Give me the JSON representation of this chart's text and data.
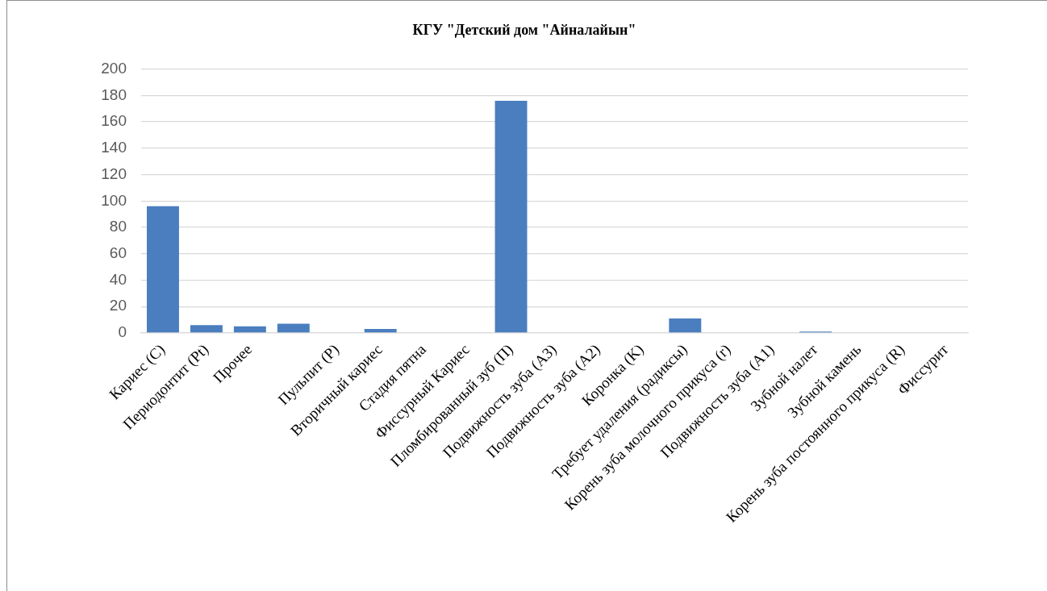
{
  "chart_data": {
    "type": "bar",
    "title": "КГУ \"Детский дом \"Айналайын\"",
    "categories": [
      "Кариес (C)",
      "Периодонтит (Pt)",
      "Прочее",
      null,
      "Пульпит (P)",
      "Вторичный кариес",
      "Стадия пятна",
      "Фиссурный Кариес",
      "Пломбированный зуб (П)",
      "Подвижность зуба (A3)",
      "Подвижность зуба (A2)",
      "Коронка (K)",
      "Требует удаления (радиксы)",
      "Корень зуба молочного прикуса (r)",
      "Подвижность зуба (A1)",
      "Зубной налет",
      "Зубной камень",
      "Корень зуба постоянного прикуса (R)",
      "Фиссурит"
    ],
    "values": [
      96,
      6,
      5,
      7,
      0,
      3,
      0,
      0,
      176,
      0,
      0,
      0,
      11,
      0,
      0,
      1,
      0,
      0,
      0
    ],
    "color": "#4a7ebf",
    "ylim": [
      0,
      200
    ],
    "yticks": [
      0,
      20,
      40,
      60,
      80,
      100,
      120,
      140,
      160,
      180,
      200
    ],
    "grid": "y"
  }
}
